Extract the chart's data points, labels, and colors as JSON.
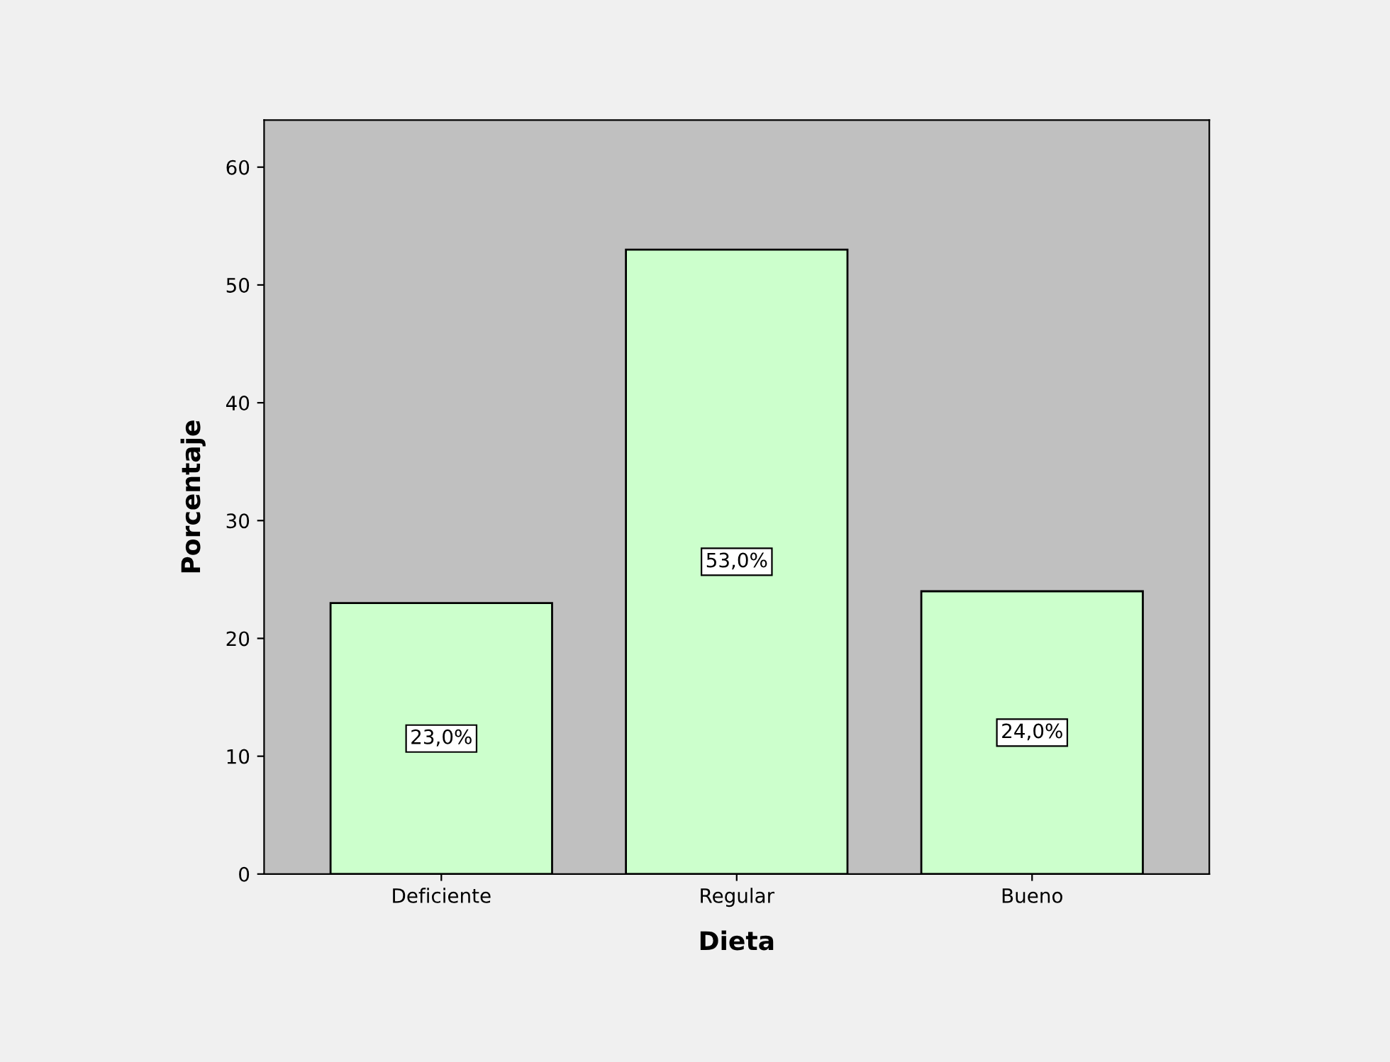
{
  "chart_data": {
    "type": "bar",
    "xlabel": "Dieta",
    "ylabel": "Porcentaje",
    "categories": [
      "Deficiente",
      "Regular",
      "Bueno"
    ],
    "values": [
      23,
      53,
      24
    ],
    "value_labels": [
      "23,0%",
      "53,0%",
      "24,0%"
    ],
    "color": "#ccffcc",
    "ylim": [
      0,
      64
    ],
    "yticks": [
      0,
      10,
      20,
      30,
      40,
      50,
      60
    ],
    "grid": false,
    "legend": false
  }
}
